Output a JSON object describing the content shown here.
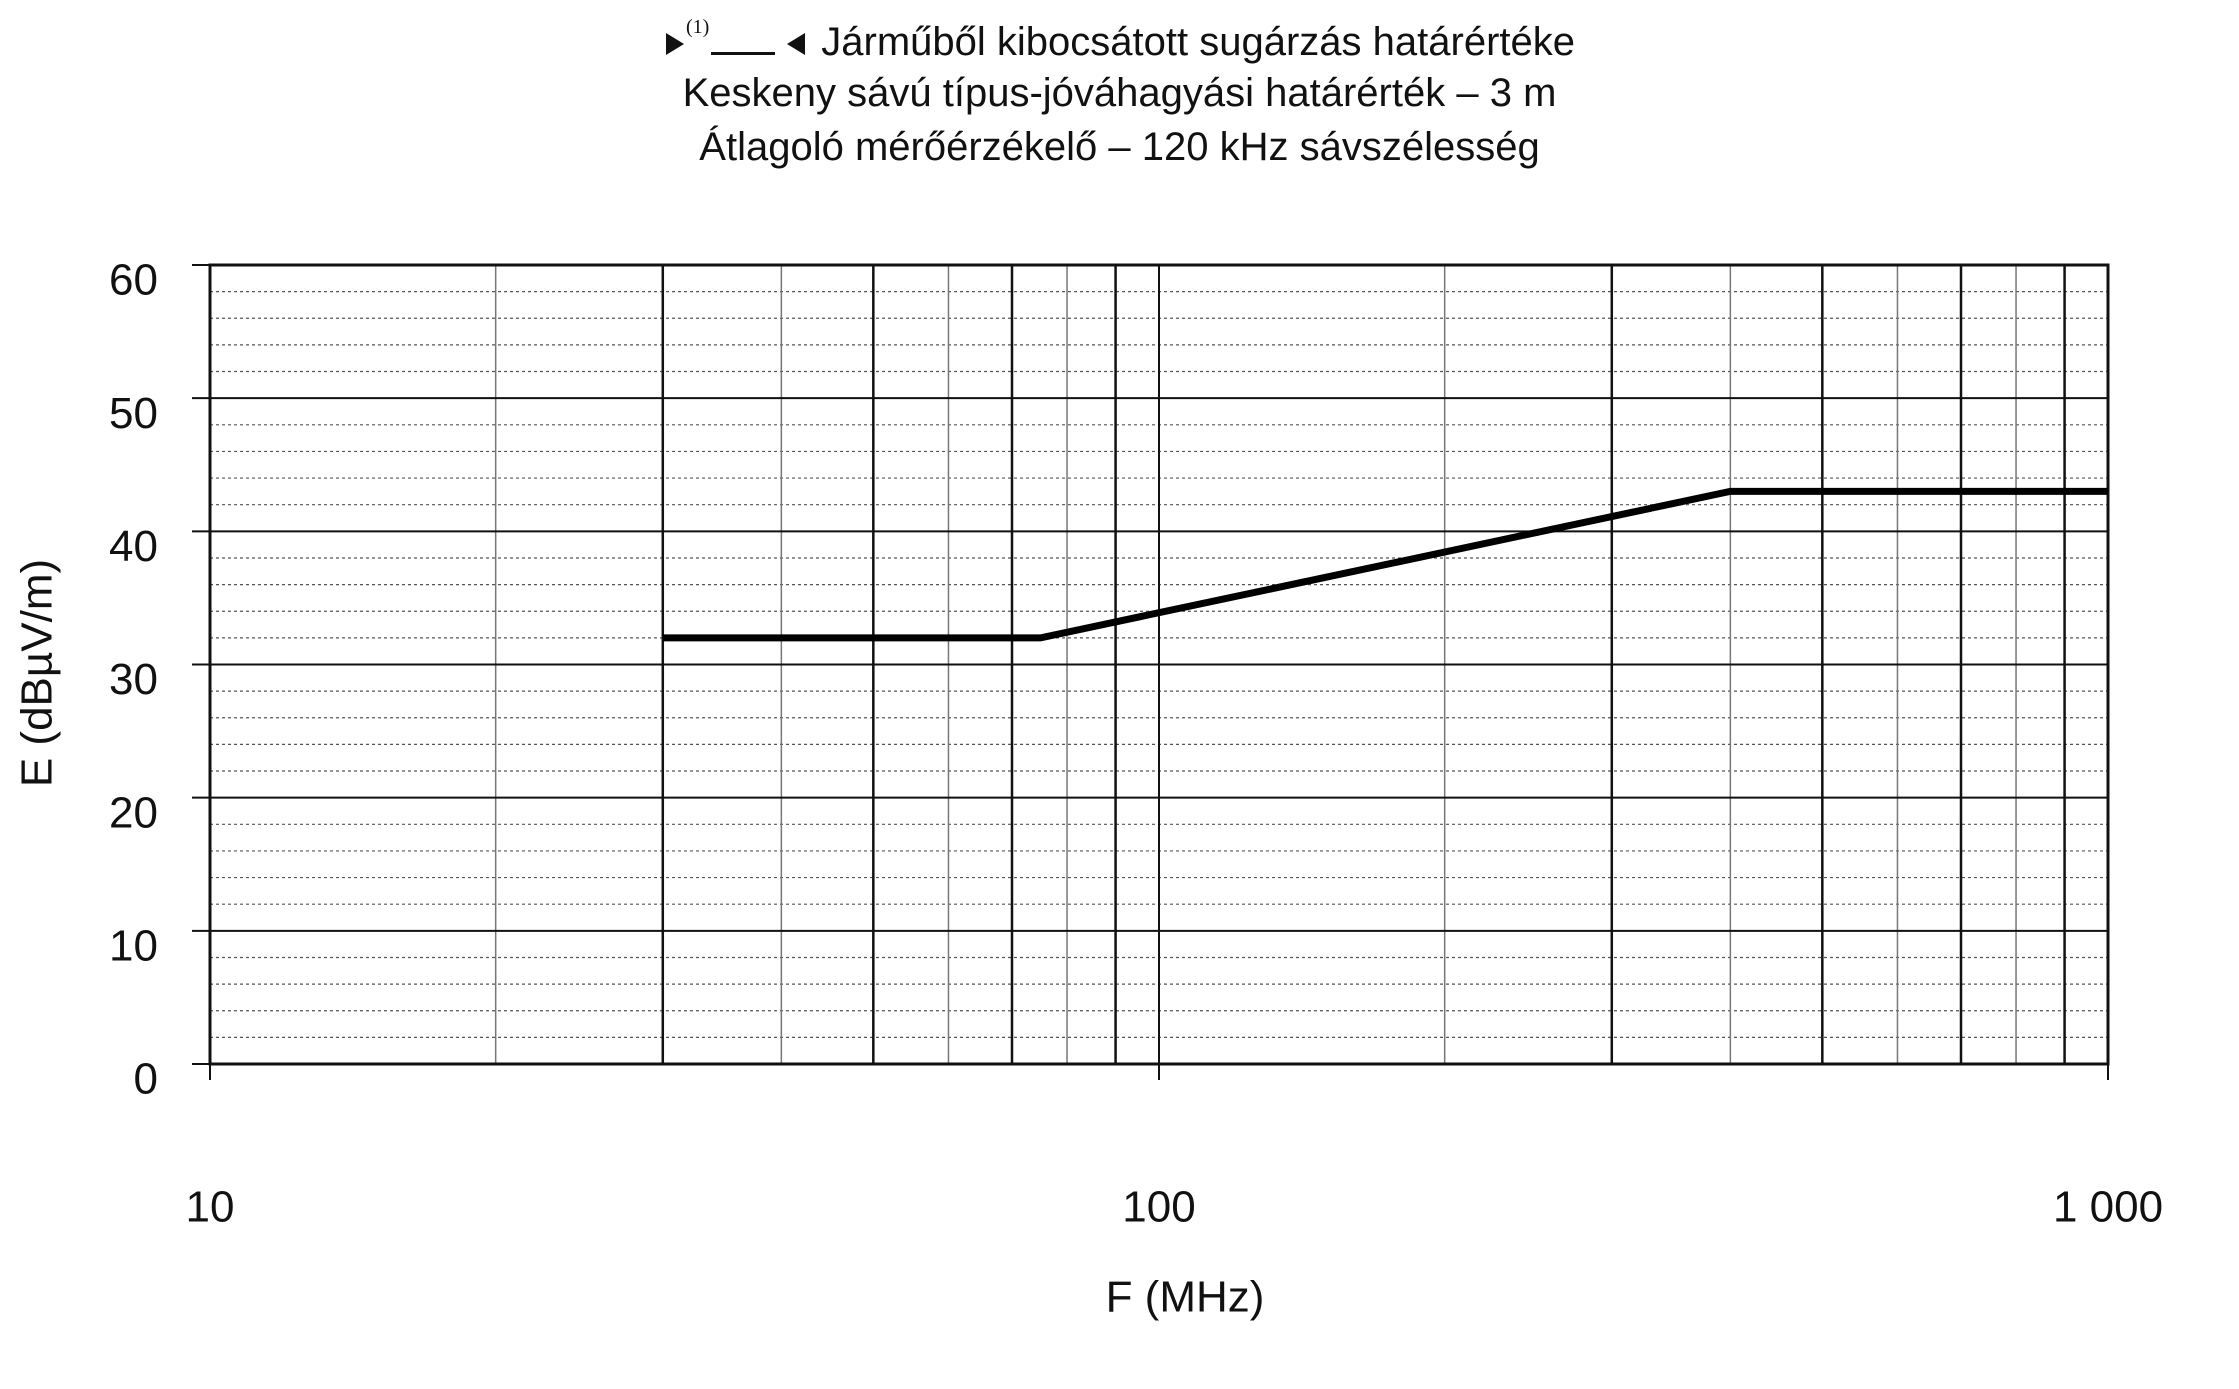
{
  "chart_data": {
    "type": "line",
    "title_marker": "(1)",
    "title": "Járműből kibocsátott sugárzás határértéke",
    "subtitle": [
      "Keskeny sávú típus-jóváhagyási határérték – 3 m",
      "Átlagoló mérőérzékelő – 120 kHz sávszélesség"
    ],
    "x_label": "F (MHz)",
    "y_label": "E (dBµV/m)",
    "x": [
      30,
      75,
      400,
      1000
    ],
    "series": [
      {
        "color": "#000000",
        "values": [
          32,
          32,
          43,
          43
        ]
      }
    ],
    "xscale": "log",
    "xlim": [
      10,
      1000
    ],
    "xticks": [
      10,
      100,
      {
        "value": 1000,
        "label": "1 000"
      }
    ],
    "ylim": [
      0,
      60
    ],
    "yticks": [
      0,
      10,
      20,
      30,
      40,
      50,
      60
    ],
    "grid": true
  }
}
